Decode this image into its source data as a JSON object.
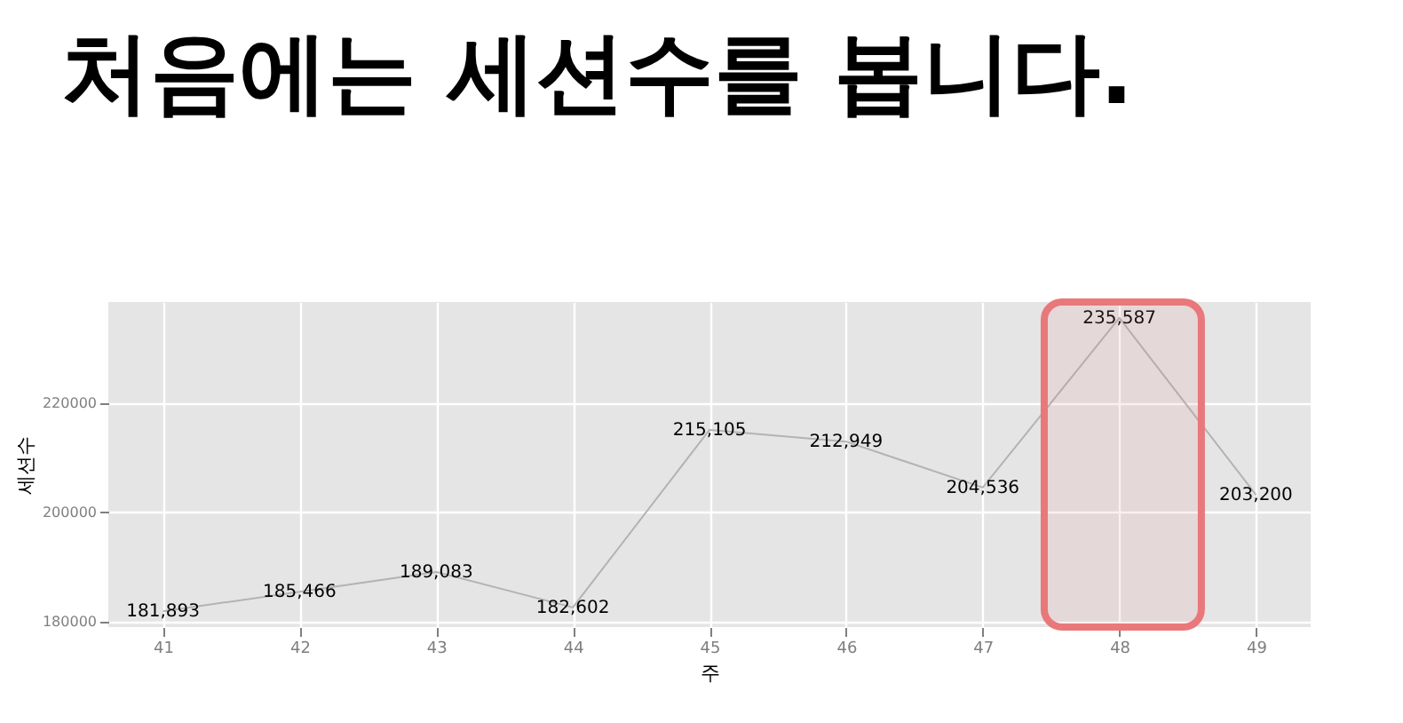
{
  "chart_data": {
    "type": "line",
    "title": "처음에는 세션수를 봅니다.",
    "xlabel": "주",
    "ylabel": "세션수",
    "x": [
      41,
      42,
      43,
      44,
      45,
      46,
      47,
      48,
      49
    ],
    "series": [
      {
        "color": "#b3b3b3",
        "values": [
          181893,
          185466,
          189083,
          182602,
          215105,
          212949,
          204536,
          235587,
          203200
        ]
      }
    ],
    "xlim": [
      40.6,
      49.4
    ],
    "xticks": [
      41,
      42,
      43,
      44,
      45,
      46,
      47,
      48,
      49
    ],
    "ylim": [
      179000,
      238500
    ],
    "yticks": [
      180000,
      200000,
      220000
    ],
    "grid": true,
    "value_labels": [
      "181,893",
      "185,466",
      "189,083",
      "182,602",
      "215,105",
      "212,949",
      "204,536",
      "235,587",
      "203,200"
    ],
    "bands": [
      {
        "axis": "x",
        "from": 47.45,
        "to": 48.6,
        "color": "#e8787a"
      }
    ]
  }
}
